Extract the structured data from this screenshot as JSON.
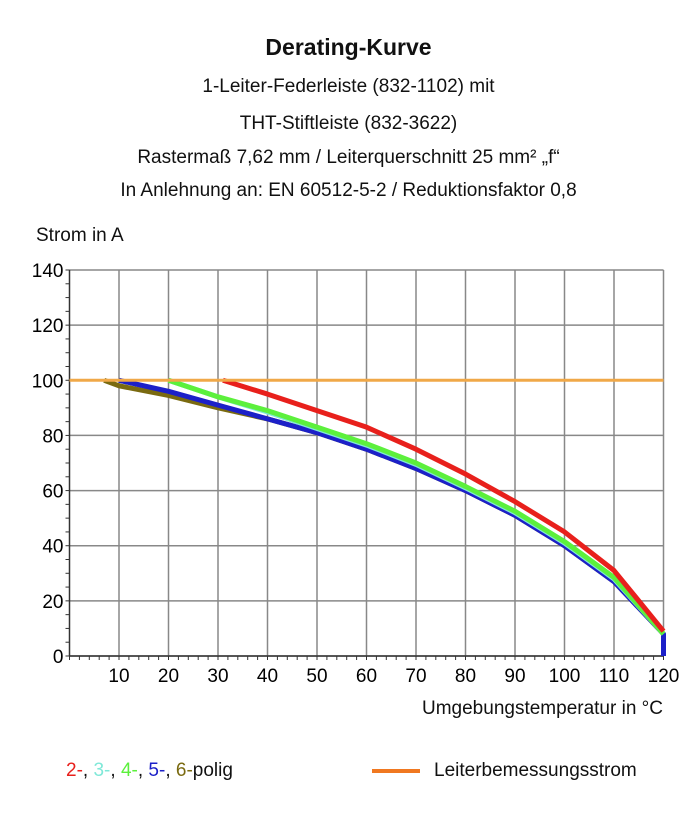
{
  "chart_data": {
    "type": "line",
    "title": "Derating-Kurve",
    "subtitle": [
      "1-Leiter-Federleiste (832-1102) mit",
      "THT-Stiftleiste (832-3622)",
      "Rastermaß 7,62 mm / Leiterquerschnitt 25 mm² „f“",
      "In Anlehnung an: EN 60512-5-2 / Reduktionsfaktor 0,8"
    ],
    "ylabel": "Strom in A",
    "xlabel": "Umgebungstemperatur in °C",
    "xlim": [
      0,
      120
    ],
    "ylim": [
      0,
      140
    ],
    "xticks": [
      10,
      20,
      30,
      40,
      50,
      60,
      70,
      80,
      90,
      100,
      110,
      120
    ],
    "yticks": [
      0,
      20,
      40,
      60,
      80,
      100,
      120,
      140
    ],
    "grid": true,
    "legend_placement": "bottom",
    "legend": {
      "poles": [
        "2-",
        ", ",
        "3-",
        ", ",
        "4-",
        ", ",
        "5-",
        ", ",
        "6-",
        "polig"
      ],
      "pole_colors": [
        "#e8201c",
        "#111111",
        "#7fe8d8",
        "#111111",
        "#5cf03c",
        "#111111",
        "#1c20c8",
        "#111111",
        "#7a6a10",
        "#111111"
      ],
      "rated": "Leiterbemessungsstrom"
    },
    "series": [
      {
        "key": "6",
        "color": "#7a6a10",
        "x": [
          7,
          10,
          20,
          30,
          40,
          50,
          60,
          70,
          80,
          90,
          100,
          110,
          120
        ],
        "y": [
          100,
          98,
          94.5,
          90,
          86,
          81,
          75,
          68,
          60,
          51,
          40,
          27,
          8
        ]
      },
      {
        "key": "5",
        "color": "#1c20c8",
        "x": [
          10,
          20,
          30,
          40,
          50,
          60,
          70,
          80,
          90,
          100,
          110,
          120,
          120
        ],
        "y": [
          100,
          96,
          91,
          86,
          81,
          75,
          68,
          60,
          51,
          40,
          27,
          8,
          0
        ]
      },
      {
        "key": "3",
        "color": "#7fe8d8",
        "x": [
          20,
          30,
          40,
          50,
          60,
          70,
          80,
          90,
          100,
          110,
          120
        ],
        "y": [
          100,
          94,
          88.5,
          82.5,
          76.5,
          69.5,
          61,
          52,
          41,
          28,
          8
        ]
      },
      {
        "key": "4",
        "color": "#5cf03c",
        "x": [
          20,
          30,
          40,
          50,
          60,
          70,
          80,
          90,
          100,
          110,
          120
        ],
        "y": [
          100,
          94,
          89,
          83,
          77,
          70,
          61.5,
          52.5,
          41.5,
          28.5,
          8
        ]
      },
      {
        "key": "2",
        "color": "#e8201c",
        "x": [
          31,
          40,
          50,
          60,
          70,
          80,
          90,
          100,
          110,
          120
        ],
        "y": [
          100,
          95,
          89,
          83,
          75,
          66,
          56,
          45,
          31,
          9
        ]
      },
      {
        "key": "rated",
        "color": "#f0a848",
        "x": [
          0,
          120
        ],
        "y": [
          100,
          100
        ]
      }
    ]
  }
}
